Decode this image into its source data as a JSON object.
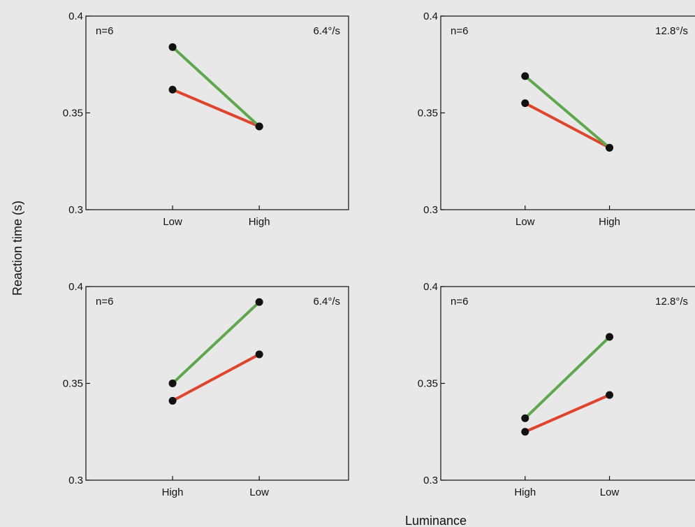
{
  "figure": {
    "ylabel": "Reaction time (s)",
    "xlabel": "Luminance"
  },
  "colors": {
    "green": "#5ca84a",
    "red": "#e0442a",
    "marker": "#111111",
    "axes": "#111111"
  },
  "chart_data": [
    {
      "type": "line",
      "annotation_left": "n=6",
      "annotation_right": "6.4°/s",
      "categories": [
        "Low",
        "High"
      ],
      "ylim": [
        0.3,
        0.4
      ],
      "yticks": [
        "0.3",
        "0.35",
        "0.4"
      ],
      "series": [
        {
          "color": "green",
          "values": [
            0.384,
            0.343
          ]
        },
        {
          "color": "red",
          "values": [
            0.362,
            0.343
          ]
        }
      ]
    },
    {
      "type": "line",
      "annotation_left": "n=6",
      "annotation_right": "12.8°/s",
      "categories": [
        "Low",
        "High"
      ],
      "ylim": [
        0.3,
        0.4
      ],
      "yticks": [
        "0.3",
        "0.35",
        "0.4"
      ],
      "series": [
        {
          "color": "green",
          "values": [
            0.369,
            0.332
          ]
        },
        {
          "color": "red",
          "values": [
            0.355,
            0.332
          ]
        }
      ]
    },
    {
      "type": "line",
      "annotation_left": "n=6",
      "annotation_right": "6.4°/s",
      "categories": [
        "High",
        "Low"
      ],
      "ylim": [
        0.3,
        0.4
      ],
      "yticks": [
        "0.3",
        "0.35",
        "0.4"
      ],
      "series": [
        {
          "color": "green",
          "values": [
            0.35,
            0.392
          ]
        },
        {
          "color": "red",
          "values": [
            0.341,
            0.365
          ]
        }
      ]
    },
    {
      "type": "line",
      "annotation_left": "n=6",
      "annotation_right": "12.8°/s",
      "categories": [
        "High",
        "Low"
      ],
      "ylim": [
        0.3,
        0.4
      ],
      "yticks": [
        "0.3",
        "0.35",
        "0.4"
      ],
      "series": [
        {
          "color": "green",
          "values": [
            0.332,
            0.374
          ]
        },
        {
          "color": "red",
          "values": [
            0.325,
            0.344
          ]
        }
      ]
    }
  ]
}
